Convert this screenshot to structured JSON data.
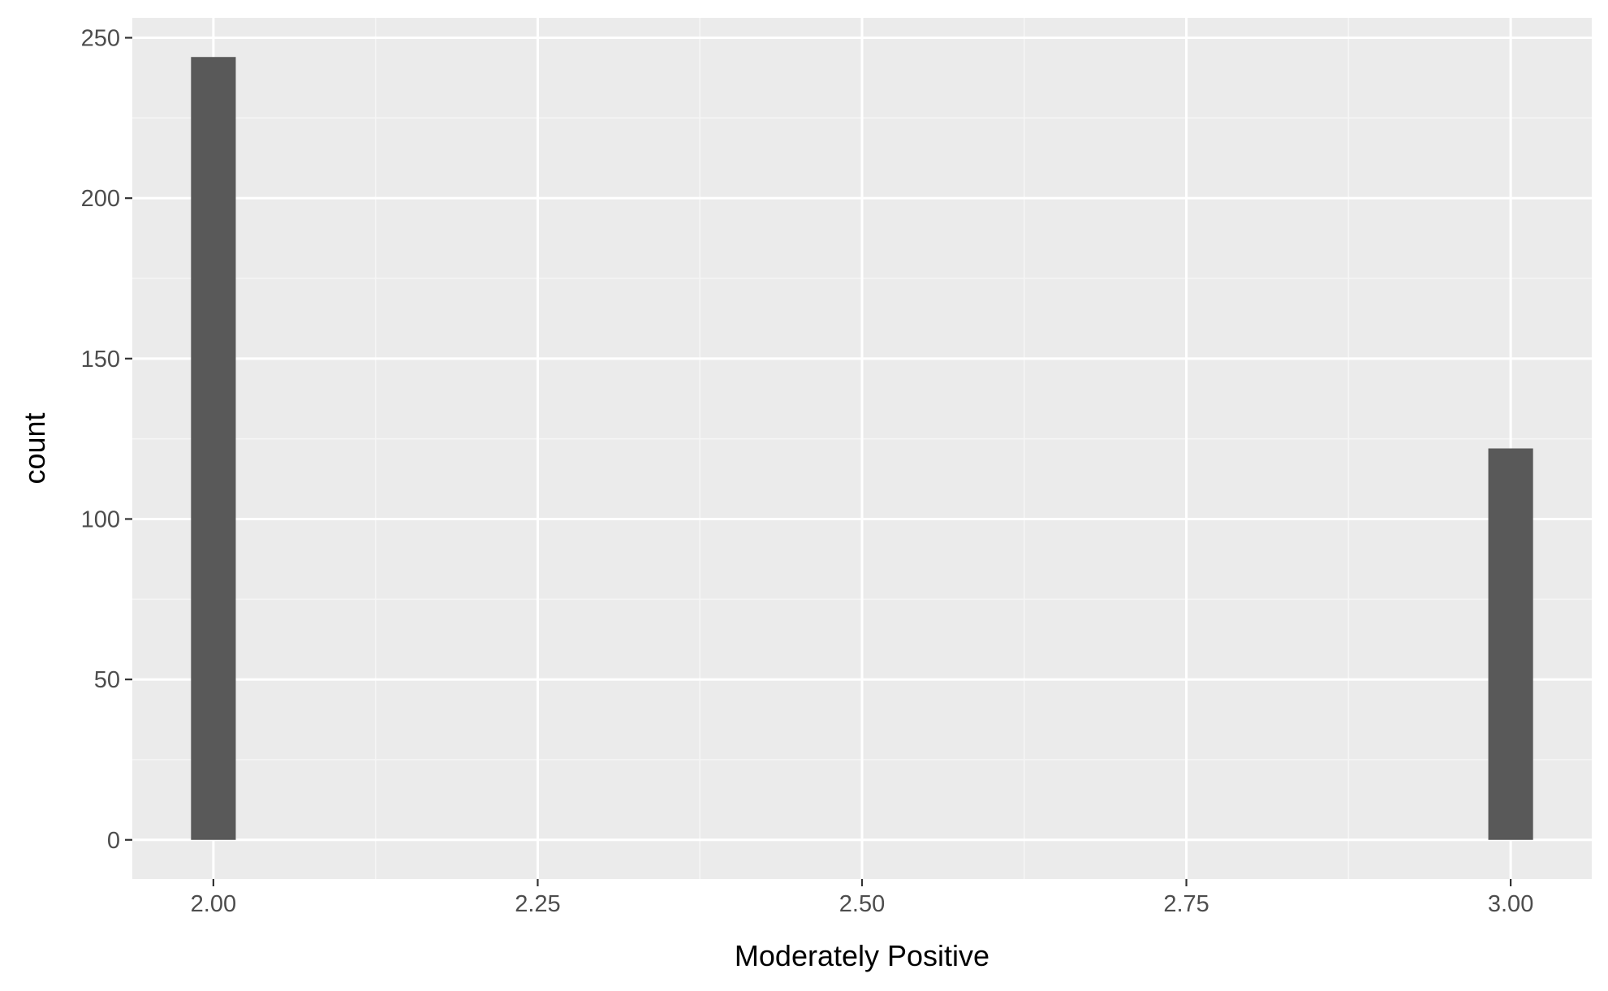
{
  "chart_data": {
    "type": "bar",
    "subtype": "histogram",
    "title": "",
    "xlabel": "Moderately Positive",
    "ylabel": "count",
    "xlim": [
      1.9375,
      3.0625
    ],
    "ylim": [
      -12.2,
      256.2
    ],
    "x_ticks": [
      2.0,
      2.25,
      2.5,
      2.75,
      3.0
    ],
    "x_tick_labels": [
      "2.00",
      "2.25",
      "2.50",
      "2.75",
      "3.00"
    ],
    "y_ticks": [
      0,
      50,
      100,
      150,
      200,
      250
    ],
    "y_tick_labels": [
      "0",
      "50",
      "100",
      "150",
      "200",
      "250"
    ],
    "bins": [
      {
        "center": 2.0,
        "width": 0.0345,
        "count": 244
      },
      {
        "center": 3.0,
        "width": 0.0345,
        "count": 122
      }
    ],
    "grid": true,
    "legend": "none",
    "colors": {
      "panel_background": "#ebebeb",
      "grid_major": "#ffffff",
      "grid_minor": "#f5f5f5",
      "bar_fill": "#595959",
      "tick_mark": "#333333"
    }
  }
}
